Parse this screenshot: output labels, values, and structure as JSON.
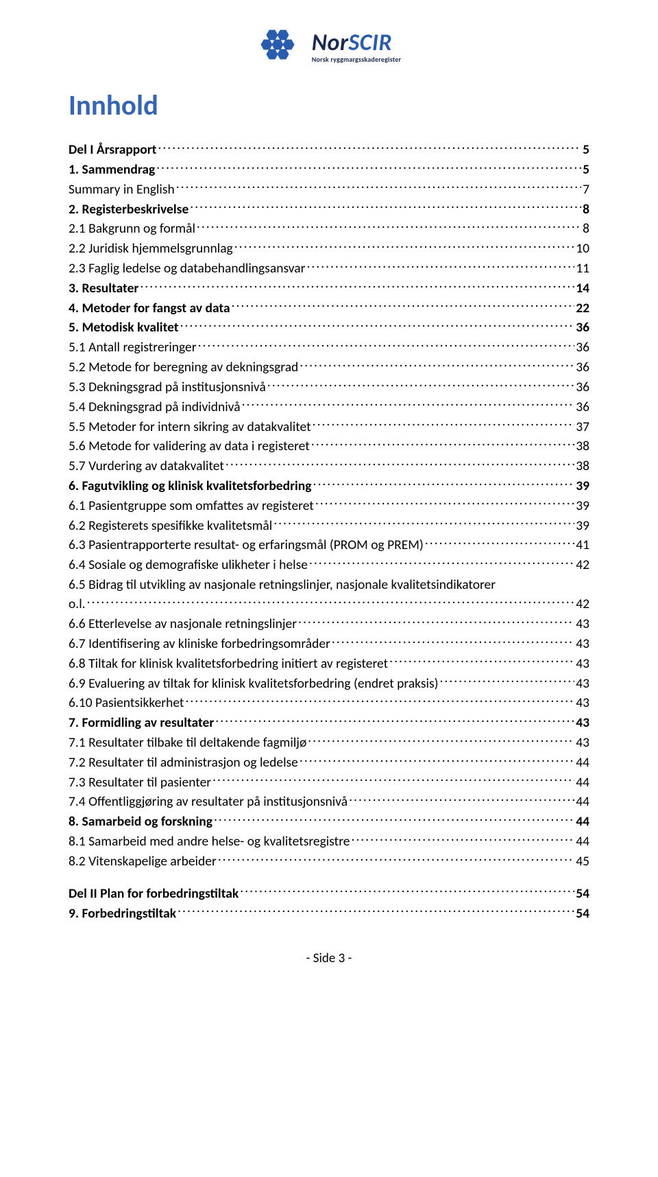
{
  "brand": {
    "name_prefix": "Nor",
    "name_suffix": "SCIR",
    "subtitle": "Norsk ryggmargsskaderegister",
    "color_primary": "#2a5cad",
    "color_text_dark": "#1b2a4c"
  },
  "title": {
    "text": "Innhold",
    "color": "#3765b0"
  },
  "colors": {
    "text": "#000000",
    "background": "#ffffff"
  },
  "toc": [
    {
      "label": "Del I    Årsrapport",
      "page": "5",
      "bold": true,
      "gap": true
    },
    {
      "label": "1. Sammendrag",
      "page": "5",
      "bold": true
    },
    {
      "label": "Summary in English",
      "page": "7",
      "bold": false
    },
    {
      "label": "2. Registerbeskrivelse",
      "page": "8",
      "bold": true
    },
    {
      "label": "2.1 Bakgrunn og formål",
      "page": "8",
      "bold": false
    },
    {
      "label": "2.2 Juridisk hjemmelsgrunnlag",
      "page": "10",
      "bold": false
    },
    {
      "label": "2.3 Faglig ledelse og databehandlingsansvar",
      "page": "11",
      "bold": false
    },
    {
      "label": "3. Resultater",
      "page": "14",
      "bold": true
    },
    {
      "label": "4. Metoder for fangst av data",
      "page": "22",
      "bold": true
    },
    {
      "label": "5. Metodisk kvalitet",
      "page": "36",
      "bold": true
    },
    {
      "label": "5.1 Antall registreringer",
      "page": "36",
      "bold": false
    },
    {
      "label": "5.2 Metode for beregning av dekningsgrad",
      "page": "36",
      "bold": false
    },
    {
      "label": "5.3 Dekningsgrad på institusjonsnivå",
      "page": "36",
      "bold": false
    },
    {
      "label": "5.4 Dekningsgrad på individnivå",
      "page": "36",
      "bold": false
    },
    {
      "label": "5.5 Metoder for intern sikring av datakvalitet",
      "page": "37",
      "bold": false
    },
    {
      "label": "5.6 Metode for validering av data i registeret",
      "page": "38",
      "bold": false
    },
    {
      "label": "5.7 Vurdering av datakvalitet",
      "page": "38",
      "bold": false
    },
    {
      "label": "6. Fagutvikling og klinisk kvalitetsforbedring",
      "page": "39",
      "bold": true
    },
    {
      "label": "6.1 Pasientgruppe som omfattes av registeret",
      "page": "39",
      "bold": false
    },
    {
      "label": "6.2 Registerets spesifikke kvalitetsmål",
      "page": "39",
      "bold": false
    },
    {
      "label": "6.3 Pasientrapporterte resultat- og erfaringsmål  (PROM og PREM)",
      "page": "41",
      "bold": false
    },
    {
      "label": "6.4 Sosiale og demografiske ulikheter i helse",
      "page": "42",
      "bold": false
    },
    {
      "label": "6.5 Bidrag til utvikling av nasjonale retningslinjer, nasjonale kvalitetsindikatorer",
      "label2": "o.l.",
      "page": "42",
      "bold": false,
      "wrap": true
    },
    {
      "label": "6.6 Etterlevelse av nasjonale retningslinjer",
      "page": "43",
      "bold": false
    },
    {
      "label": "6.7 Identifisering av kliniske forbedringsområder",
      "page": "43",
      "bold": false
    },
    {
      "label": "6.8 Tiltak for klinisk kvalitetsforbedring initiert av registeret",
      "page": "43",
      "bold": false
    },
    {
      "label": "6.9 Evaluering av tiltak for klinisk kvalitetsforbedring  (endret praksis)",
      "page": "43",
      "bold": false
    },
    {
      "label": "6.10 Pasientsikkerhet",
      "page": "43",
      "bold": false
    },
    {
      "label": "7. Formidling av resultater",
      "page": "43",
      "bold": true
    },
    {
      "label": "7.1 Resultater tilbake til deltakende fagmiljø",
      "page": "43",
      "bold": false
    },
    {
      "label": "7.2 Resultater til administrasjon og ledelse",
      "page": "44",
      "bold": false
    },
    {
      "label": "7.3 Resultater til pasienter",
      "page": "44",
      "bold": false
    },
    {
      "label": "7.4 Offentliggjøring av resultater på institusjonsnivå",
      "page": "44",
      "bold": false
    },
    {
      "label": "8. Samarbeid og forskning",
      "page": "44",
      "bold": true
    },
    {
      "label": "8.1 Samarbeid med andre helse- og kvalitetsregistre",
      "page": "44",
      "bold": false
    },
    {
      "label": "8.2 Vitenskapelige arbeider",
      "page": "45",
      "bold": false
    },
    {
      "label": "Del II      Plan for forbedringstiltak",
      "page": "54",
      "bold": true,
      "gap": true
    },
    {
      "label": "9. Forbedringstiltak",
      "page": "54",
      "bold": true
    }
  ],
  "footer": "-  Side 3  -"
}
